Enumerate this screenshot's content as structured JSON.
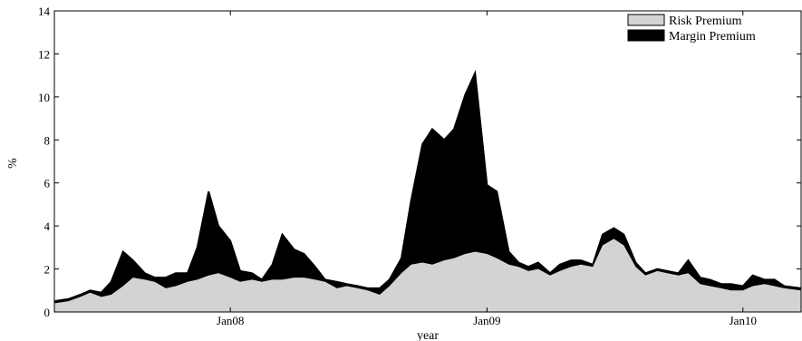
{
  "chart_data": {
    "type": "area",
    "xlabel": "year",
    "ylabel": "%",
    "ylim": [
      0,
      14
    ],
    "xlim": [
      "2007-04-25",
      "2010-03-25"
    ],
    "y_ticks": [
      0,
      2,
      4,
      6,
      8,
      10,
      12,
      14
    ],
    "x_ticks": [
      {
        "date": "2008-01-01",
        "label": "Jan08"
      },
      {
        "date": "2009-01-01",
        "label": "Jan09"
      },
      {
        "date": "2010-01-01",
        "label": "Jan10"
      }
    ],
    "grid": false,
    "legend_position": "top-right",
    "stacked": true,
    "colors": {
      "risk_premium": "#d3d3d3",
      "margin_premium": "#000000"
    },
    "series": [
      {
        "name": "Risk Premium",
        "color": "#d3d3d3",
        "points": [
          [
            "2007-04-25",
            0.4
          ],
          [
            "2007-05-15",
            0.5
          ],
          [
            "2007-06-01",
            0.7
          ],
          [
            "2007-06-15",
            0.9
          ],
          [
            "2007-07-01",
            0.7
          ],
          [
            "2007-07-15",
            0.8
          ],
          [
            "2007-08-01",
            1.2
          ],
          [
            "2007-08-15",
            1.6
          ],
          [
            "2007-09-01",
            1.5
          ],
          [
            "2007-09-15",
            1.4
          ],
          [
            "2007-10-01",
            1.1
          ],
          [
            "2007-10-15",
            1.2
          ],
          [
            "2007-11-01",
            1.4
          ],
          [
            "2007-11-15",
            1.5
          ],
          [
            "2007-12-01",
            1.7
          ],
          [
            "2007-12-15",
            1.8
          ],
          [
            "2008-01-01",
            1.6
          ],
          [
            "2008-01-15",
            1.4
          ],
          [
            "2008-02-01",
            1.5
          ],
          [
            "2008-02-15",
            1.4
          ],
          [
            "2008-03-01",
            1.5
          ],
          [
            "2008-03-15",
            1.5
          ],
          [
            "2008-04-01",
            1.6
          ],
          [
            "2008-04-15",
            1.6
          ],
          [
            "2008-05-01",
            1.5
          ],
          [
            "2008-05-15",
            1.4
          ],
          [
            "2008-06-01",
            1.1
          ],
          [
            "2008-06-15",
            1.2
          ],
          [
            "2008-07-01",
            1.1
          ],
          [
            "2008-07-15",
            1.0
          ],
          [
            "2008-08-01",
            0.8
          ],
          [
            "2008-08-15",
            1.2
          ],
          [
            "2008-09-01",
            1.8
          ],
          [
            "2008-09-15",
            2.2
          ],
          [
            "2008-10-01",
            2.3
          ],
          [
            "2008-10-15",
            2.2
          ],
          [
            "2008-11-01",
            2.4
          ],
          [
            "2008-11-15",
            2.5
          ],
          [
            "2008-12-01",
            2.7
          ],
          [
            "2008-12-15",
            2.8
          ],
          [
            "2009-01-01",
            2.7
          ],
          [
            "2009-01-15",
            2.5
          ],
          [
            "2009-02-01",
            2.2
          ],
          [
            "2009-02-15",
            2.1
          ],
          [
            "2009-03-01",
            1.9
          ],
          [
            "2009-03-15",
            2.0
          ],
          [
            "2009-04-01",
            1.7
          ],
          [
            "2009-04-15",
            1.9
          ],
          [
            "2009-05-01",
            2.1
          ],
          [
            "2009-05-15",
            2.2
          ],
          [
            "2009-06-01",
            2.1
          ],
          [
            "2009-06-15",
            3.1
          ],
          [
            "2009-07-01",
            3.4
          ],
          [
            "2009-07-15",
            3.1
          ],
          [
            "2009-08-01",
            2.1
          ],
          [
            "2009-08-15",
            1.7
          ],
          [
            "2009-09-01",
            1.9
          ],
          [
            "2009-09-15",
            1.8
          ],
          [
            "2009-10-01",
            1.7
          ],
          [
            "2009-10-15",
            1.8
          ],
          [
            "2009-11-01",
            1.3
          ],
          [
            "2009-11-15",
            1.2
          ],
          [
            "2009-12-01",
            1.1
          ],
          [
            "2009-12-15",
            1.0
          ],
          [
            "2010-01-01",
            1.0
          ],
          [
            "2010-01-15",
            1.2
          ],
          [
            "2010-02-01",
            1.3
          ],
          [
            "2010-02-15",
            1.2
          ],
          [
            "2010-03-01",
            1.1
          ],
          [
            "2010-03-25",
            1.0
          ]
        ]
      },
      {
        "name": "Margin Premium",
        "color": "#000000",
        "points": [
          [
            "2007-04-25",
            0.1
          ],
          [
            "2007-05-15",
            0.1
          ],
          [
            "2007-06-01",
            0.1
          ],
          [
            "2007-06-15",
            0.1
          ],
          [
            "2007-07-01",
            0.2
          ],
          [
            "2007-07-15",
            0.6
          ],
          [
            "2007-08-01",
            1.6
          ],
          [
            "2007-08-15",
            0.8
          ],
          [
            "2007-09-01",
            0.3
          ],
          [
            "2007-09-15",
            0.2
          ],
          [
            "2007-10-01",
            0.5
          ],
          [
            "2007-10-15",
            0.6
          ],
          [
            "2007-11-01",
            0.4
          ],
          [
            "2007-11-15",
            1.5
          ],
          [
            "2007-12-01",
            3.9
          ],
          [
            "2007-12-15",
            2.2
          ],
          [
            "2008-01-01",
            1.7
          ],
          [
            "2008-01-15",
            0.5
          ],
          [
            "2008-02-01",
            0.3
          ],
          [
            "2008-02-15",
            0.1
          ],
          [
            "2008-03-01",
            0.7
          ],
          [
            "2008-03-15",
            2.1
          ],
          [
            "2008-04-01",
            1.3
          ],
          [
            "2008-04-15",
            1.1
          ],
          [
            "2008-05-01",
            0.6
          ],
          [
            "2008-05-15",
            0.1
          ],
          [
            "2008-06-01",
            0.3
          ],
          [
            "2008-06-15",
            0.1
          ],
          [
            "2008-07-01",
            0.1
          ],
          [
            "2008-07-15",
            0.1
          ],
          [
            "2008-08-01",
            0.3
          ],
          [
            "2008-08-15",
            0.3
          ],
          [
            "2008-09-01",
            0.7
          ],
          [
            "2008-09-15",
            3.0
          ],
          [
            "2008-10-01",
            5.5
          ],
          [
            "2008-10-15",
            6.3
          ],
          [
            "2008-11-01",
            5.6
          ],
          [
            "2008-11-15",
            6.0
          ],
          [
            "2008-12-01",
            7.4
          ],
          [
            "2008-12-15",
            8.3
          ],
          [
            "2009-01-01",
            3.2
          ],
          [
            "2009-01-15",
            3.1
          ],
          [
            "2009-02-01",
            0.6
          ],
          [
            "2009-02-15",
            0.2
          ],
          [
            "2009-03-01",
            0.2
          ],
          [
            "2009-03-15",
            0.3
          ],
          [
            "2009-04-01",
            0.1
          ],
          [
            "2009-04-15",
            0.3
          ],
          [
            "2009-05-01",
            0.3
          ],
          [
            "2009-05-15",
            0.2
          ],
          [
            "2009-06-01",
            0.1
          ],
          [
            "2009-06-15",
            0.5
          ],
          [
            "2009-07-01",
            0.5
          ],
          [
            "2009-07-15",
            0.5
          ],
          [
            "2009-08-01",
            0.2
          ],
          [
            "2009-08-15",
            0.1
          ],
          [
            "2009-09-01",
            0.1
          ],
          [
            "2009-09-15",
            0.1
          ],
          [
            "2009-10-01",
            0.1
          ],
          [
            "2009-10-15",
            0.6
          ],
          [
            "2009-11-01",
            0.3
          ],
          [
            "2009-11-15",
            0.3
          ],
          [
            "2009-12-01",
            0.2
          ],
          [
            "2009-12-15",
            0.3
          ],
          [
            "2010-01-01",
            0.2
          ],
          [
            "2010-01-15",
            0.5
          ],
          [
            "2010-02-01",
            0.2
          ],
          [
            "2010-02-15",
            0.3
          ],
          [
            "2010-03-01",
            0.1
          ],
          [
            "2010-03-25",
            0.1
          ]
        ]
      }
    ]
  }
}
